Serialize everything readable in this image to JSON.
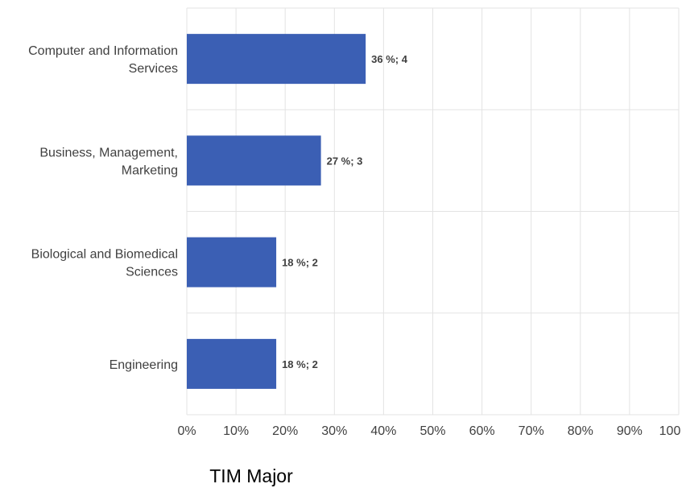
{
  "chart_data": {
    "type": "bar",
    "orientation": "horizontal",
    "categories": [
      [
        "Computer and Information",
        "Services"
      ],
      [
        "Business, Management,",
        "Marketing"
      ],
      [
        "Biological and Biomedical",
        "Sciences"
      ],
      [
        "Engineering"
      ]
    ],
    "values": [
      36.36,
      27.27,
      18.18,
      18.18
    ],
    "counts": [
      4,
      3,
      2,
      2
    ],
    "data_labels": [
      "36 %; 4",
      "27 %; 3",
      "18 %; 2",
      "18 %; 2"
    ],
    "x_ticks": [
      "0%",
      "10%",
      "20%",
      "30%",
      "40%",
      "50%",
      "60%",
      "70%",
      "80%",
      "90%",
      "100"
    ],
    "xlim": [
      0,
      100
    ],
    "xlabel": "TIM Major",
    "grid": true,
    "colors": {
      "bar": "#3b5fb4",
      "grid": "#e3e3e3",
      "text": "#404040"
    }
  }
}
